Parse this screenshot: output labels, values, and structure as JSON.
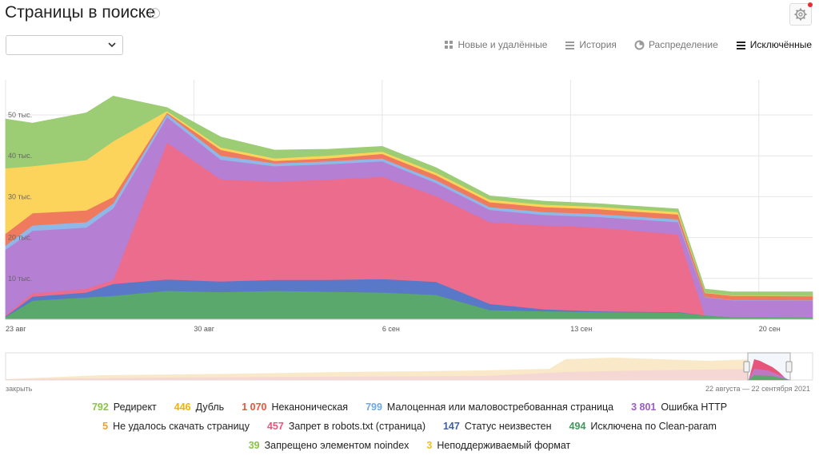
{
  "page": {
    "title": "Страницы в поиске"
  },
  "tabs": [
    {
      "label": "Новые и удалённые",
      "icon": "grid-icon",
      "active": false
    },
    {
      "label": "История",
      "icon": "stack-icon",
      "active": false
    },
    {
      "label": "Распределение",
      "icon": "pie-icon",
      "active": false
    },
    {
      "label": "Исключённые",
      "icon": "stack-icon",
      "active": true
    }
  ],
  "navigator": {
    "close_label": "закрыть",
    "range_label": "22 августа — 22 сентября 2021"
  },
  "chart_data": {
    "type": "area",
    "x": [
      "23 авг",
      "24 авг",
      "26 авг",
      "27 авг",
      "29 авг",
      "31 авг",
      "2 сен",
      "4 сен",
      "6 сен",
      "8 сен",
      "10 сен",
      "12 сен",
      "14 сен",
      "17 сен",
      "18 сен",
      "19 сен",
      "22 сен"
    ],
    "x_ticks": [
      "23 авг",
      "30 авг",
      "6 сен",
      "13 сен",
      "20 сен"
    ],
    "y_ticks": [
      "10 тыс.",
      "20 тыс.",
      "30 тыс.",
      "40 тыс.",
      "50 тыс."
    ],
    "ylim": [
      0,
      55000
    ],
    "series": [
      {
        "name": "Исключена по Clean-param",
        "color": "#5aa86c",
        "values": [
          600,
          4600,
          5400,
          5800,
          7000,
          6700,
          7000,
          6800,
          6600,
          6000,
          2300,
          2000,
          1800,
          1700,
          1000,
          600,
          500
        ]
      },
      {
        "name": "Статус неизвестен",
        "color": "#5a78c8",
        "values": [
          200,
          1000,
          1200,
          2900,
          2800,
          2600,
          2700,
          2900,
          3300,
          3200,
          1500,
          500,
          200,
          100,
          0,
          0,
          0
        ]
      },
      {
        "name": "Запрет в robots.txt (страница)",
        "color": "#ec6c8e",
        "values": [
          300,
          800,
          900,
          1000,
          33500,
          25000,
          24000,
          24500,
          25000,
          21000,
          20000,
          20500,
          20500,
          19000,
          0,
          0,
          0
        ]
      },
      {
        "name": "Ошибка HTTP",
        "color": "#b57fd4",
        "values": [
          16000,
          15300,
          15000,
          17500,
          6200,
          4800,
          3800,
          3800,
          3800,
          3200,
          3000,
          2600,
          2600,
          3000,
          4400,
          4100,
          4100
        ]
      },
      {
        "name": "Малоценная или маловостребованная страница",
        "color": "#8fb8e8",
        "values": [
          1000,
          1300,
          1300,
          1200,
          800,
          1000,
          700,
          700,
          700,
          700,
          700,
          700,
          700,
          700,
          100,
          100,
          100
        ]
      },
      {
        "name": "Неканоническая",
        "color": "#f07a5e",
        "values": [
          2900,
          3000,
          2900,
          1600,
          300,
          1400,
          600,
          700,
          1100,
          1200,
          1200,
          1200,
          1200,
          1200,
          1000,
          1000,
          1000
        ]
      },
      {
        "name": "Дубль",
        "color": "#fcd45c",
        "values": [
          16000,
          11500,
          12300,
          13600,
          400,
          600,
          600,
          700,
          600,
          600,
          600,
          600,
          600,
          600,
          100,
          100,
          100
        ]
      },
      {
        "name": "Редирект",
        "color": "#9ccc74",
        "values": [
          12000,
          10500,
          11500,
          11000,
          800,
          2500,
          2000,
          1500,
          1200,
          1200,
          900,
          800,
          700,
          700,
          800,
          800,
          900
        ]
      }
    ]
  },
  "legend_rows": [
    [
      {
        "value": "792",
        "label": "Редирект",
        "color": "#8bc34a"
      },
      {
        "value": "446",
        "label": "Дубль",
        "color": "#f0b400"
      },
      {
        "value": "1 070",
        "label": "Неканоническая",
        "color": "#e8553a"
      },
      {
        "value": "799",
        "label": "Малоценная или маловостребованная страница",
        "color": "#6fa8e0"
      },
      {
        "value": "3 801",
        "label": "Ошибка HTTP",
        "color": "#9c5cc4"
      }
    ],
    [
      {
        "value": "5",
        "label": "Не удалось скачать страницу",
        "color": "#f0a030"
      },
      {
        "value": "457",
        "label": "Запрет в robots.txt (страница)",
        "color": "#e8557a"
      },
      {
        "value": "147",
        "label": "Статус неизвестен",
        "color": "#3f5fb0"
      },
      {
        "value": "494",
        "label": "Исключена по Clean-param",
        "color": "#3f9a5c"
      }
    ],
    [
      {
        "value": "39",
        "label": "Запрещено элементом noindex",
        "color": "#8bc34a"
      },
      {
        "value": "3",
        "label": "Неподдерживаемый формат",
        "color": "#f0c020"
      }
    ]
  ]
}
